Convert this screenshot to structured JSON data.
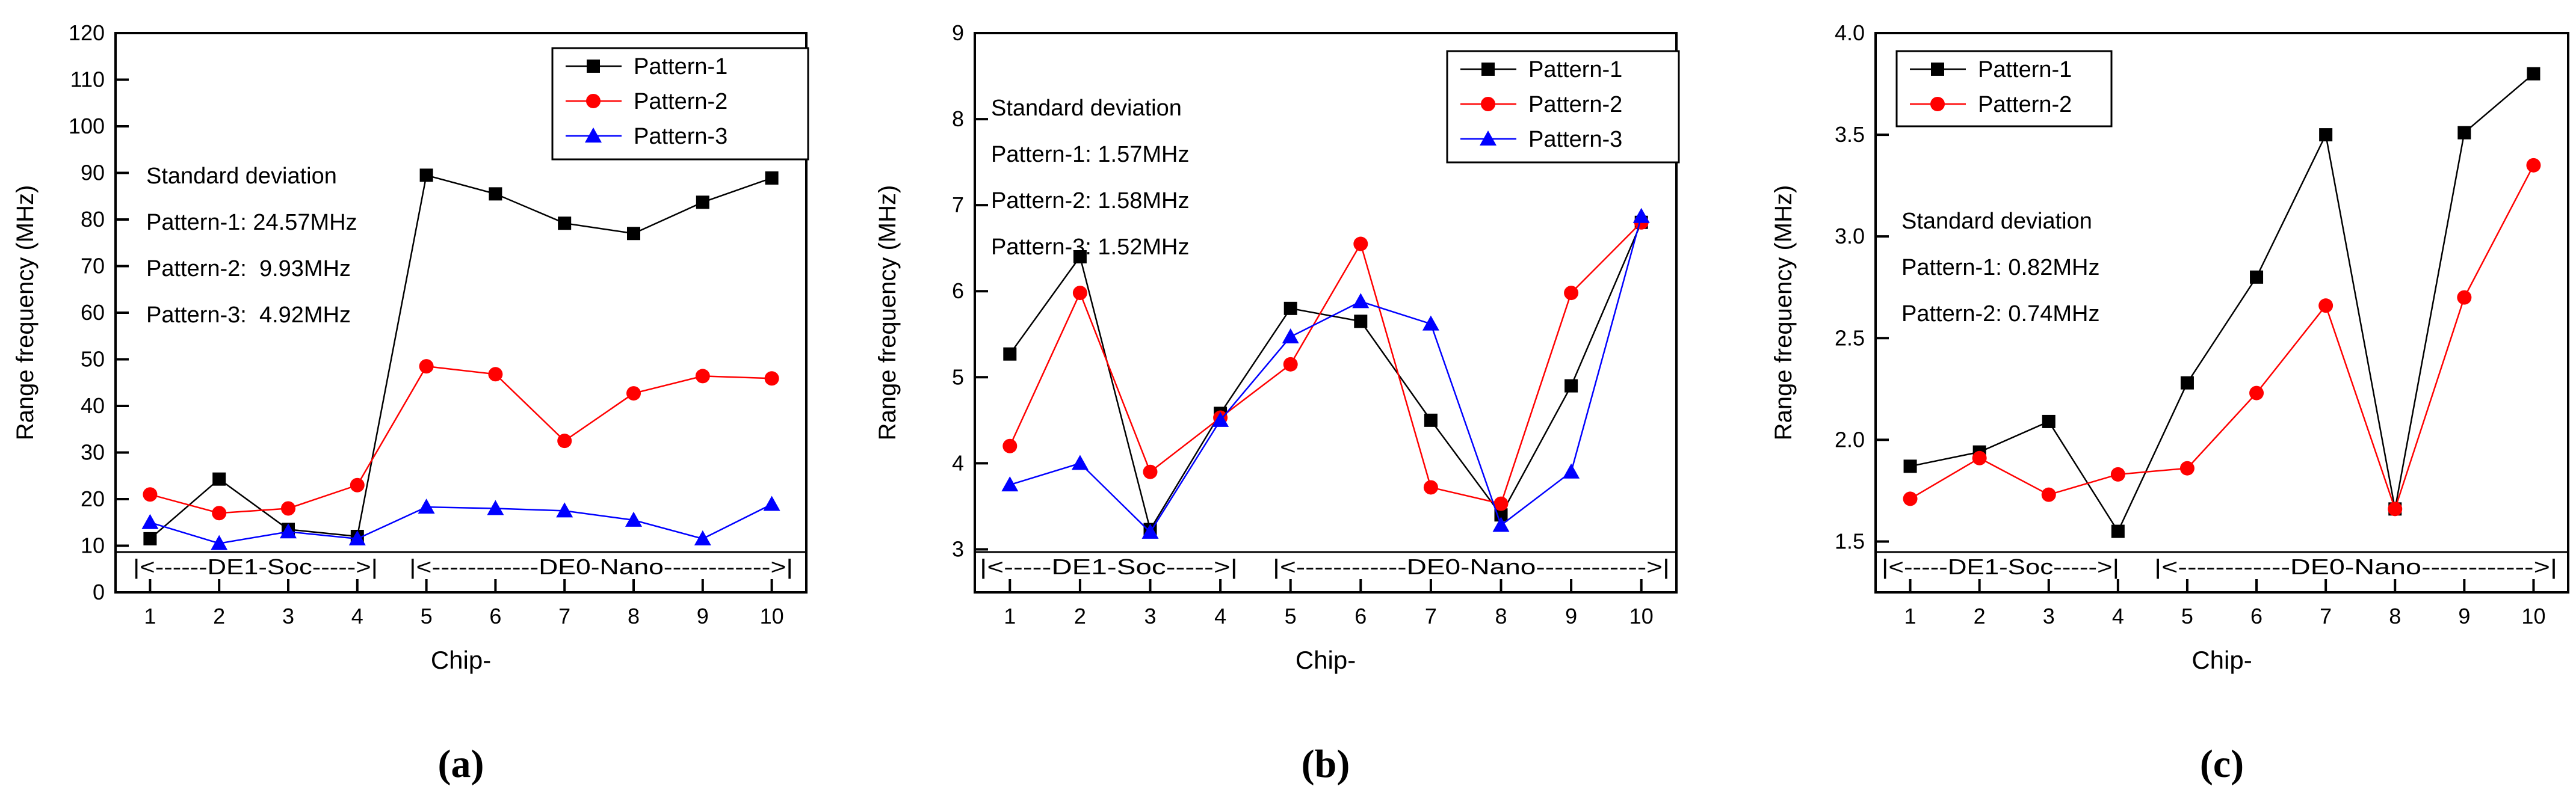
{
  "chart_data": [
    {
      "type": "line",
      "panel_label": "(a)",
      "xlabel": "Chip-",
      "ylabel": "Range frequency (MHz)",
      "xlim": [
        0.5,
        10.5
      ],
      "ylim": [
        0,
        120
      ],
      "x_ticks": [
        1,
        2,
        3,
        4,
        5,
        6,
        7,
        8,
        9,
        10
      ],
      "y_ticks": [
        0,
        10,
        20,
        30,
        40,
        50,
        60,
        70,
        80,
        90,
        100,
        110,
        120
      ],
      "categories": [
        1,
        2,
        3,
        4,
        5,
        6,
        7,
        8,
        9,
        10
      ],
      "series": [
        {
          "name": "Pattern-1",
          "color": "#000000",
          "marker": "square",
          "values": [
            11.5,
            24.3,
            13.5,
            12.0,
            89.5,
            85.5,
            79.2,
            77.0,
            83.7,
            88.9
          ]
        },
        {
          "name": "Pattern-2",
          "color": "#ff0000",
          "marker": "circle",
          "values": [
            21.0,
            17.0,
            18.0,
            23.0,
            48.5,
            46.8,
            32.5,
            42.7,
            46.4,
            45.9
          ]
        },
        {
          "name": "Pattern-3",
          "color": "#0000ff",
          "marker": "triangle",
          "values": [
            15.0,
            10.5,
            13.0,
            11.5,
            18.3,
            18.0,
            17.5,
            15.5,
            11.5,
            18.9
          ]
        }
      ],
      "legend_position": "top-right",
      "annotation_lines": [
        "Standard deviation",
        "Pattern-1: 24.57MHz",
        "Pattern-2:  9.93MHz",
        "Pattern-3:  4.92MHz"
      ],
      "group_labels": [
        "|<------DE1-Soc----->|",
        "|<------------DE0-Nano------------>|"
      ]
    },
    {
      "type": "line",
      "panel_label": "(b)",
      "xlabel": "Chip-",
      "ylabel": "Range frequency (MHz)",
      "xlim": [
        0.5,
        10.5
      ],
      "ylim": [
        2.5,
        9
      ],
      "x_ticks": [
        1,
        2,
        3,
        4,
        5,
        6,
        7,
        8,
        9,
        10
      ],
      "y_ticks": [
        3,
        4,
        5,
        6,
        7,
        8,
        9
      ],
      "categories": [
        1,
        2,
        3,
        4,
        5,
        6,
        7,
        8,
        9,
        10
      ],
      "series": [
        {
          "name": "Pattern-1",
          "color": "#000000",
          "marker": "square",
          "values": [
            5.27,
            6.4,
            3.23,
            4.58,
            5.8,
            5.65,
            4.5,
            3.4,
            4.9,
            6.8
          ]
        },
        {
          "name": "Pattern-2",
          "color": "#ff0000",
          "marker": "circle",
          "values": [
            4.2,
            5.98,
            3.9,
            4.53,
            5.15,
            6.55,
            3.72,
            3.53,
            5.98,
            6.8
          ]
        },
        {
          "name": "Pattern-3",
          "color": "#0000ff",
          "marker": "triangle",
          "values": [
            3.75,
            4.0,
            3.2,
            4.5,
            5.47,
            5.88,
            5.62,
            3.28,
            3.9,
            6.87
          ]
        }
      ],
      "legend_position": "top-right",
      "annotation_lines": [
        "Standard deviation",
        "Pattern-1: 1.57MHz",
        "Pattern-2: 1.58MHz",
        "Pattern-3: 1.52MHz"
      ],
      "group_labels": [
        "|<-----DE1-Soc----->|",
        "|<------------DE0-Nano------------>|"
      ]
    },
    {
      "type": "line",
      "panel_label": "(c)",
      "xlabel": "Chip-",
      "ylabel": "Range frequency (MHz)",
      "xlim": [
        0.5,
        10.5
      ],
      "ylim": [
        1.25,
        4.0
      ],
      "x_ticks": [
        1,
        2,
        3,
        4,
        5,
        6,
        7,
        8,
        9,
        10
      ],
      "y_ticks": [
        1.5,
        2.0,
        2.5,
        3.0,
        3.5,
        4.0
      ],
      "y_tick_labels": [
        "1.5",
        "2.0",
        "2.5",
        "3.0",
        "3.5",
        "4.0"
      ],
      "categories": [
        1,
        2,
        3,
        4,
        5,
        6,
        7,
        8,
        9,
        10
      ],
      "series": [
        {
          "name": "Pattern-1",
          "color": "#000000",
          "marker": "square",
          "values": [
            1.87,
            1.94,
            2.09,
            1.55,
            2.28,
            2.8,
            3.5,
            1.66,
            3.51,
            3.8
          ]
        },
        {
          "name": "Pattern-2",
          "color": "#ff0000",
          "marker": "circle",
          "values": [
            1.71,
            1.91,
            1.73,
            1.83,
            1.86,
            2.23,
            2.66,
            1.66,
            2.7,
            3.35
          ]
        }
      ],
      "legend_position": "top-left",
      "annotation_lines": [
        "Standard deviation",
        "Pattern-1: 0.82MHz",
        "Pattern-2: 0.74MHz"
      ],
      "group_labels": [
        "|<-----DE1-Soc----->|",
        "|<------------DE0-Nano------------>|"
      ]
    }
  ]
}
